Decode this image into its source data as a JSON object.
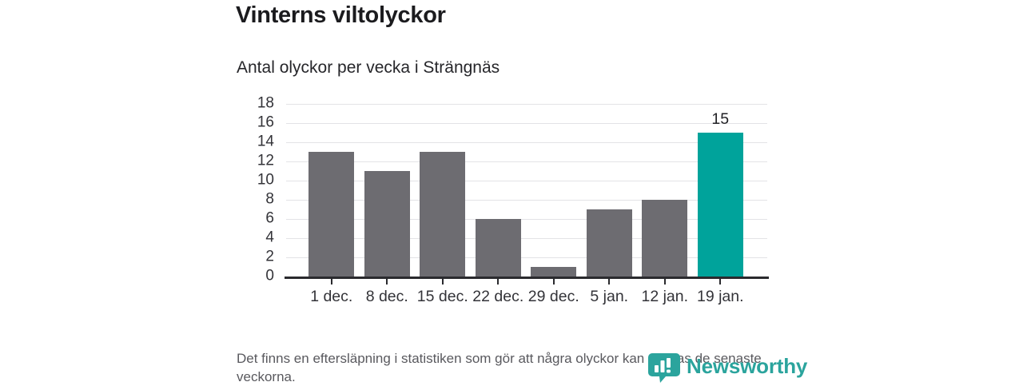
{
  "header": {
    "title": "Vinterns viltolyckor",
    "subtitle": "Antal olyckor per vecka i Strängnäs"
  },
  "chart_data": {
    "type": "bar",
    "title": "Vinterns viltolyckor",
    "subtitle": "Antal olyckor per vecka i Strängnäs",
    "categories": [
      "1 dec.",
      "8 dec.",
      "15 dec.",
      "22 dec.",
      "29 dec.",
      "5 jan.",
      "12 jan.",
      "19 jan."
    ],
    "values": [
      13,
      11,
      13,
      6,
      1,
      7,
      8,
      15
    ],
    "highlight_index": 7,
    "highlight_value_label": "15",
    "xlabel": "",
    "ylabel": "",
    "ylim": [
      0,
      18
    ],
    "ytick_step": 2,
    "grid": "horizontal",
    "legend": "none",
    "bar_color": "#6d6c71",
    "highlight_color": "#00a39b",
    "gridline_color": "#e3e3e6",
    "axis_color": "#2a2a2e"
  },
  "footer": {
    "note": "Det finns en eftersläpning i statistiken som gör att några olyckor kan saknas de senaste veckorna."
  },
  "branding": {
    "logo_text": "Newsworthy",
    "logo_color": "#2ba49d",
    "logo_icon": "newsworthy-chart-pin-icon"
  }
}
